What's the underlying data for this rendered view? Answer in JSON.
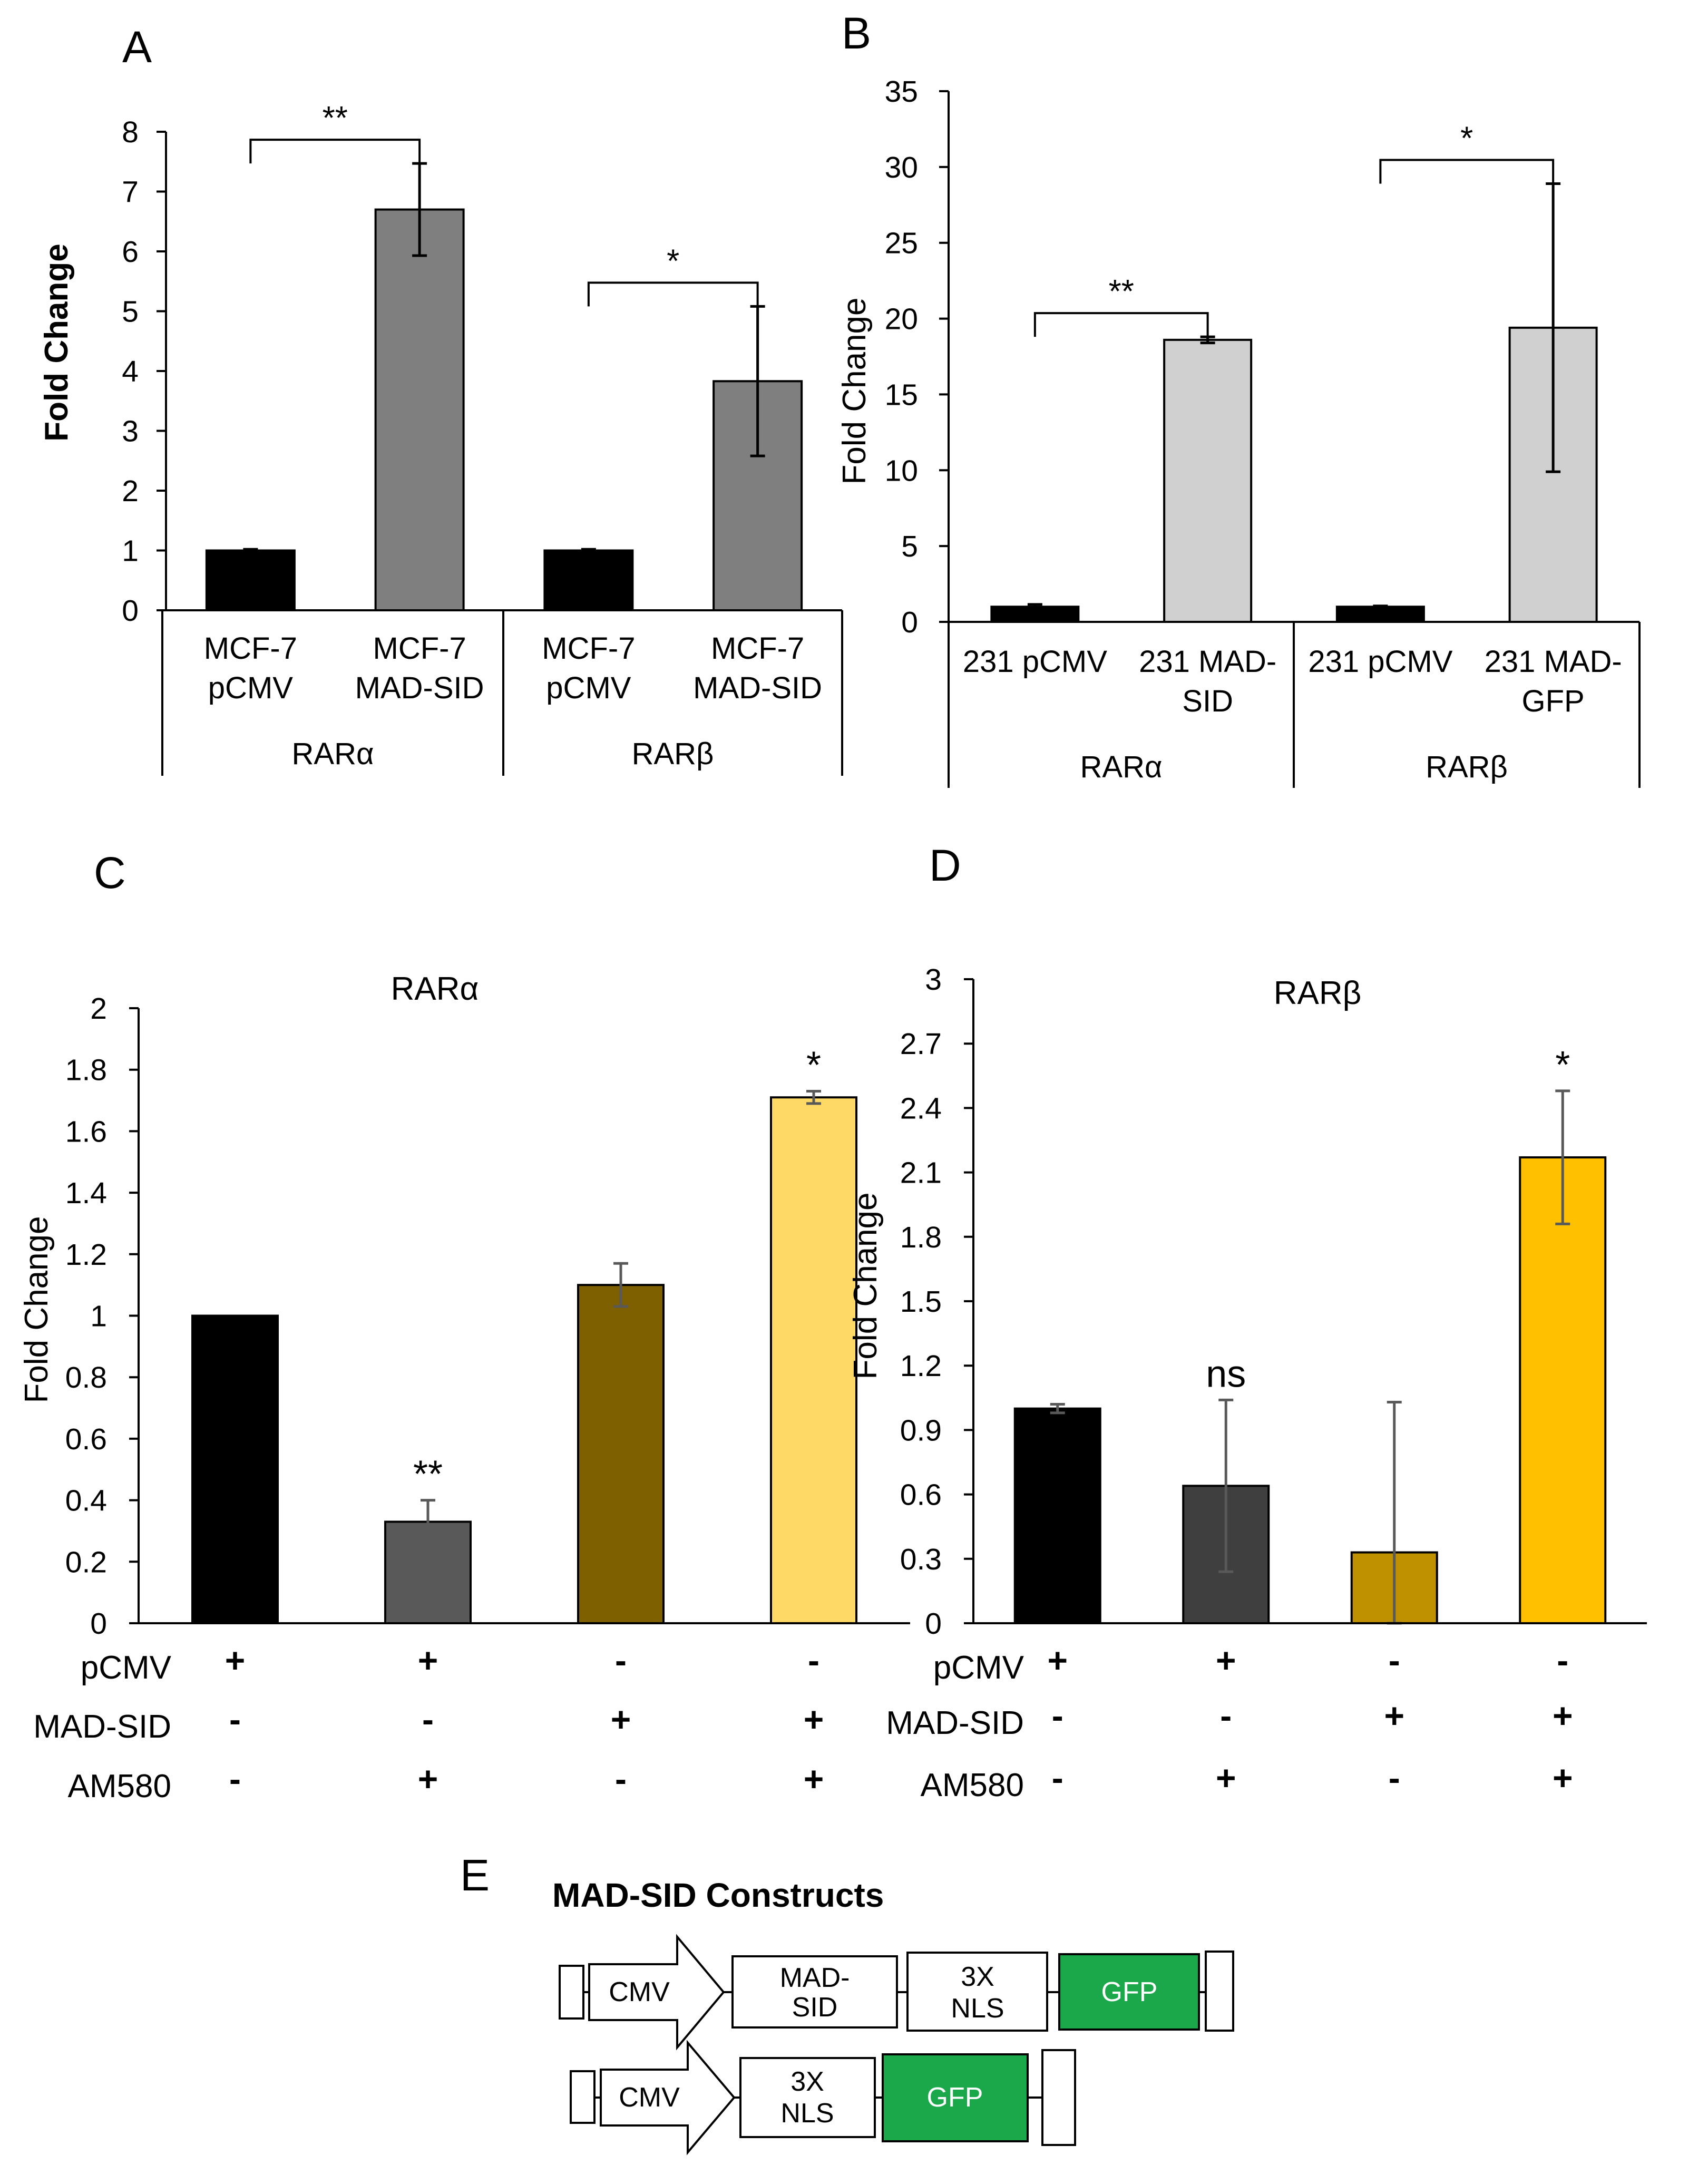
{
  "panels": {
    "A": "A",
    "B": "B",
    "C": "C",
    "D": "D",
    "E": "E"
  },
  "chart_data": [
    {
      "id": "A",
      "type": "bar",
      "title": "",
      "ylabel": "Fold Change",
      "ylim": [
        0,
        8
      ],
      "yticks": [
        "0",
        "1",
        "2",
        "3",
        "4",
        "5",
        "6",
        "7",
        "8"
      ],
      "groups": [
        "RARα",
        "RARβ"
      ],
      "categories": [
        [
          "MCF-7",
          "pCMV"
        ],
        [
          "MCF-7",
          "MAD-SID"
        ],
        [
          "MCF-7",
          "pCMV"
        ],
        [
          "MCF-7",
          "MAD-SID"
        ]
      ],
      "values": [
        1.0,
        6.7,
        1.0,
        3.83
      ],
      "errors": [
        0.02,
        0.77,
        0.02,
        1.25
      ],
      "colors": [
        "#000000",
        "#7f7f7f",
        "#000000",
        "#7f7f7f"
      ],
      "significance": [
        {
          "from": 0,
          "to": 1,
          "label": "**"
        },
        {
          "from": 2,
          "to": 3,
          "label": "*"
        }
      ]
    },
    {
      "id": "B",
      "type": "bar",
      "title": "",
      "ylabel": "Fold Change",
      "ylim": [
        0,
        35
      ],
      "yticks": [
        "0",
        "5",
        "10",
        "15",
        "20",
        "25",
        "30",
        "35"
      ],
      "groups": [
        "RARα",
        "RARβ"
      ],
      "categories": [
        [
          "231 pCMV"
        ],
        [
          "231 MAD-",
          "SID"
        ],
        [
          "231 pCMV"
        ],
        [
          "231 MAD-",
          "GFP"
        ]
      ],
      "values": [
        1.0,
        18.6,
        1.0,
        19.4
      ],
      "errors": [
        0.15,
        0.2,
        0.05,
        9.5
      ],
      "colors": [
        "#000000",
        "#d0d0d0",
        "#000000",
        "#d0d0d0"
      ],
      "significance": [
        {
          "from": 0,
          "to": 1,
          "label": "**"
        },
        {
          "from": 2,
          "to": 3,
          "label": "*"
        }
      ]
    },
    {
      "id": "C",
      "type": "bar",
      "title": "RARα",
      "ylabel": "Fold Change",
      "ylim": [
        0,
        2
      ],
      "yticks": [
        "0",
        "0.2",
        "0.4",
        "0.6",
        "0.8",
        "1",
        "1.2",
        "1.4",
        "1.6",
        "1.8",
        "2"
      ],
      "values": [
        1.0,
        0.33,
        1.1,
        1.71
      ],
      "errors": [
        0.0,
        0.07,
        0.07,
        0.02
      ],
      "colors": [
        "#000000",
        "#595959",
        "#7f6000",
        "#ffd966"
      ],
      "annotations": [
        "",
        "**",
        "",
        "*"
      ],
      "treatments": [
        {
          "label": "pCMV",
          "signs": [
            "+",
            "+",
            "-",
            "-"
          ]
        },
        {
          "label": "MAD-SID",
          "signs": [
            "-",
            "-",
            "+",
            "+"
          ]
        },
        {
          "label": "AM580",
          "signs": [
            "-",
            "+",
            "-",
            "+"
          ]
        }
      ]
    },
    {
      "id": "D",
      "type": "bar",
      "title": "RARβ",
      "ylabel": "Fold Change",
      "ylim": [
        0,
        3
      ],
      "yticks": [
        "0",
        "0.3",
        "0.6",
        "0.9",
        "1.2",
        "1.5",
        "1.8",
        "2.1",
        "2.4",
        "2.7",
        "3"
      ],
      "values": [
        1.0,
        0.64,
        0.33,
        2.17
      ],
      "errors": [
        0.02,
        0.4,
        0.7,
        0.31
      ],
      "colors": [
        "#000000",
        "#3f3f3f",
        "#bf9000",
        "#ffc000"
      ],
      "annotations": [
        "",
        "ns",
        "",
        "*"
      ],
      "treatments": [
        {
          "label": "pCMV",
          "signs": [
            "+",
            "+",
            "-",
            "-"
          ]
        },
        {
          "label": "MAD-SID",
          "signs": [
            "-",
            "-",
            "+",
            "+"
          ]
        },
        {
          "label": "AM580",
          "signs": [
            "-",
            "+",
            "-",
            "+"
          ]
        }
      ]
    }
  ],
  "diagram": {
    "title": "MAD-SID Constructs",
    "rows": [
      {
        "promoter": "CMV",
        "boxes": [
          [
            "MAD-",
            "SID"
          ],
          [
            "3X",
            "NLS"
          ],
          [
            "GFP"
          ]
        ]
      },
      {
        "promoter": "CMV",
        "boxes": [
          [
            "3X",
            "NLS"
          ],
          [
            "GFP"
          ]
        ]
      }
    ],
    "colors": {
      "gfp": "#1aa84a",
      "box": "#ffffff"
    }
  }
}
